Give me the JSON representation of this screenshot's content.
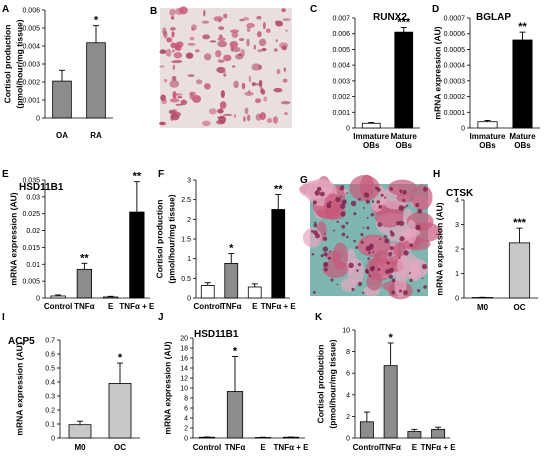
{
  "colors": {
    "white": "#ffffff",
    "grey": "#8c8c8c",
    "lightgrey": "#c8c8c8",
    "black": "#000000",
    "stain_bg": "#e9dfdf",
    "stain_pink": "#c7587a",
    "stain_dark": "#7a1f4a",
    "stain_teal": "#7fb7b0"
  },
  "images": [
    {
      "letter": "B",
      "icon": "histology-stain-image",
      "description_hidden": true
    },
    {
      "letter": "G",
      "icon": "osteoclast-stain-image",
      "description_hidden": true
    }
  ],
  "chart_data": [
    {
      "letter": "A",
      "type": "bar",
      "title": "",
      "ylabel": [
        "Cortisol production",
        "(pmol/hour/mg tissue)"
      ],
      "ylim": [
        0,
        0.006
      ],
      "yticks": [
        0,
        0.001,
        0.002,
        0.003,
        0.004,
        0.005,
        0.006
      ],
      "ytick_labels": [
        "0",
        "0.001",
        "0.002",
        "0.003",
        "0.004",
        "0.005",
        "0.006"
      ],
      "categories": [
        "OA",
        "RA"
      ],
      "values": [
        0.00205,
        0.00418
      ],
      "errors": [
        0.0006,
        0.00095
      ],
      "fills": [
        "grey",
        "grey"
      ],
      "sig": [
        "",
        "*"
      ]
    },
    {
      "letter": "C",
      "type": "bar",
      "title": "RUNX2",
      "ylabel": [],
      "ylim": [
        0,
        0.007
      ],
      "yticks": [
        0,
        0.001,
        0.002,
        0.003,
        0.004,
        0.005,
        0.006,
        0.007
      ],
      "ytick_labels": [
        "0",
        "0.001",
        "0.002",
        "0.003",
        "0.004",
        "0.005",
        "0.006",
        "0.007"
      ],
      "categories": [
        [
          "Immature",
          "OBs"
        ],
        [
          "Mature",
          "OBs"
        ]
      ],
      "values": [
        0.0003,
        0.0061
      ],
      "errors": [
        5e-05,
        0.0003
      ],
      "fills": [
        "white",
        "black"
      ],
      "sig": [
        "",
        "***"
      ]
    },
    {
      "letter": "D",
      "type": "bar",
      "title": "BGLAP",
      "ylabel": [
        "mRNA expression (AU)"
      ],
      "ylim": [
        0,
        0.0007
      ],
      "yticks": [
        0,
        0.0001,
        0.0002,
        0.0003,
        0.0004,
        0.0005,
        0.0006,
        0.0007
      ],
      "ytick_labels": [
        "0",
        "0.0001",
        "0.0002",
        "0.0003",
        "0.0004",
        "0.0005",
        "0.0006",
        "0.0007"
      ],
      "categories": [
        [
          "Immature",
          "OBs"
        ],
        [
          "Mature",
          "OBs"
        ]
      ],
      "values": [
        4e-05,
        0.00056
      ],
      "errors": [
        8e-06,
        5e-05
      ],
      "fills": [
        "white",
        "black"
      ],
      "sig": [
        "",
        "**"
      ]
    },
    {
      "letter": "E",
      "type": "bar",
      "title": "HSD11B1",
      "ylabel": [
        "mRNA expression (AU)"
      ],
      "ylim": [
        0,
        0.035
      ],
      "yticks": [
        0,
        0.005,
        0.01,
        0.015,
        0.02,
        0.025,
        0.03,
        0.035
      ],
      "ytick_labels": [
        "0",
        "0.005",
        "0.01",
        "0.015",
        "0.02",
        "0.025",
        "0.03",
        "0.035"
      ],
      "categories": [
        "Control",
        "TNFα",
        "E",
        "TNFα + E"
      ],
      "values": [
        0.0006,
        0.0085,
        0.0003,
        0.0255
      ],
      "errors": [
        0.0003,
        0.0018,
        0.0002,
        0.009
      ],
      "fills": [
        "white",
        "grey",
        "white",
        "black"
      ],
      "sig": [
        "",
        "**",
        "",
        "**"
      ]
    },
    {
      "letter": "F",
      "type": "bar",
      "title": "",
      "ylabel": [
        "Cortisol production",
        "(pmol/hour/mg tissue)"
      ],
      "ylim": [
        0,
        3
      ],
      "yticks": [
        0,
        0.5,
        1,
        1.5,
        2,
        2.5,
        3
      ],
      "ytick_labels": [
        "0",
        "0.5",
        "1",
        "1.5",
        "2",
        "2.5",
        "3"
      ],
      "categories": [
        "Control",
        "TNFα",
        "E",
        "TNFα + E"
      ],
      "values": [
        0.32,
        0.88,
        0.28,
        2.25
      ],
      "errors": [
        0.07,
        0.25,
        0.08,
        0.38
      ],
      "fills": [
        "white",
        "grey",
        "white",
        "black"
      ],
      "sig": [
        "",
        "*",
        "",
        "**"
      ]
    },
    {
      "letter": "H",
      "type": "bar",
      "title": "CTSK",
      "ylabel": [
        "mRNA expression (AU)"
      ],
      "ylim": [
        0,
        4
      ],
      "yticks": [
        0,
        1,
        2,
        3,
        4
      ],
      "ytick_labels": [
        "0",
        "1",
        "2",
        "3",
        "4"
      ],
      "categories": [
        "M0",
        "OC"
      ],
      "values": [
        0.02,
        2.25
      ],
      "errors": [
        0.01,
        0.6
      ],
      "fills": [
        "lightgrey",
        "lightgrey"
      ],
      "sig": [
        "",
        "***"
      ]
    },
    {
      "letter": "I",
      "type": "bar",
      "title": "ACP5",
      "ylabel": [
        "mRNA expression (AU)"
      ],
      "ylim": [
        0,
        0.7
      ],
      "yticks": [
        0,
        0.1,
        0.2,
        0.3,
        0.4,
        0.5,
        0.6,
        0.7
      ],
      "ytick_labels": [
        "0",
        "0.1",
        "0.2",
        "0.3",
        "0.4",
        "0.5",
        "0.6",
        "0.7"
      ],
      "categories": [
        "M0",
        "OC"
      ],
      "values": [
        0.095,
        0.39
      ],
      "errors": [
        0.025,
        0.145
      ],
      "fills": [
        "lightgrey",
        "lightgrey"
      ],
      "sig": [
        "",
        "*"
      ]
    },
    {
      "letter": "J",
      "type": "bar",
      "title": "HSD11B1",
      "ylabel": [
        "mRNA expression (AU)"
      ],
      "ylim": [
        0,
        20
      ],
      "yticks": [
        0,
        2,
        4,
        6,
        8,
        10,
        12,
        14,
        16,
        18,
        20
      ],
      "ytick_labels": [
        "0",
        "2",
        "4",
        "6",
        "8",
        "10",
        "12",
        "14",
        "16",
        "18",
        "20"
      ],
      "categories": [
        "Control",
        "TNFα",
        "E",
        "TNFα + E"
      ],
      "values": [
        0.15,
        9.3,
        0.1,
        0.15
      ],
      "errors": [
        0.05,
        7.0,
        0.05,
        0.05
      ],
      "fills": [
        "grey",
        "grey",
        "grey",
        "grey"
      ],
      "sig": [
        "",
        "*",
        "",
        ""
      ]
    },
    {
      "letter": "K",
      "type": "bar",
      "title": "",
      "ylabel": [
        "Cortisol production",
        "(pmol/hour/mg tissue)"
      ],
      "ylim": [
        0,
        10
      ],
      "yticks": [
        0,
        2,
        4,
        6,
        8,
        10
      ],
      "ytick_labels": [
        "0",
        "2",
        "4",
        "6",
        "8",
        "10"
      ],
      "categories": [
        "Control",
        "TNFα",
        "E",
        "TNFα + E"
      ],
      "values": [
        1.5,
        6.7,
        0.6,
        0.8
      ],
      "errors": [
        0.9,
        2.1,
        0.2,
        0.2
      ],
      "fills": [
        "grey",
        "grey",
        "grey",
        "grey"
      ],
      "sig": [
        "",
        "*",
        "",
        ""
      ]
    }
  ]
}
